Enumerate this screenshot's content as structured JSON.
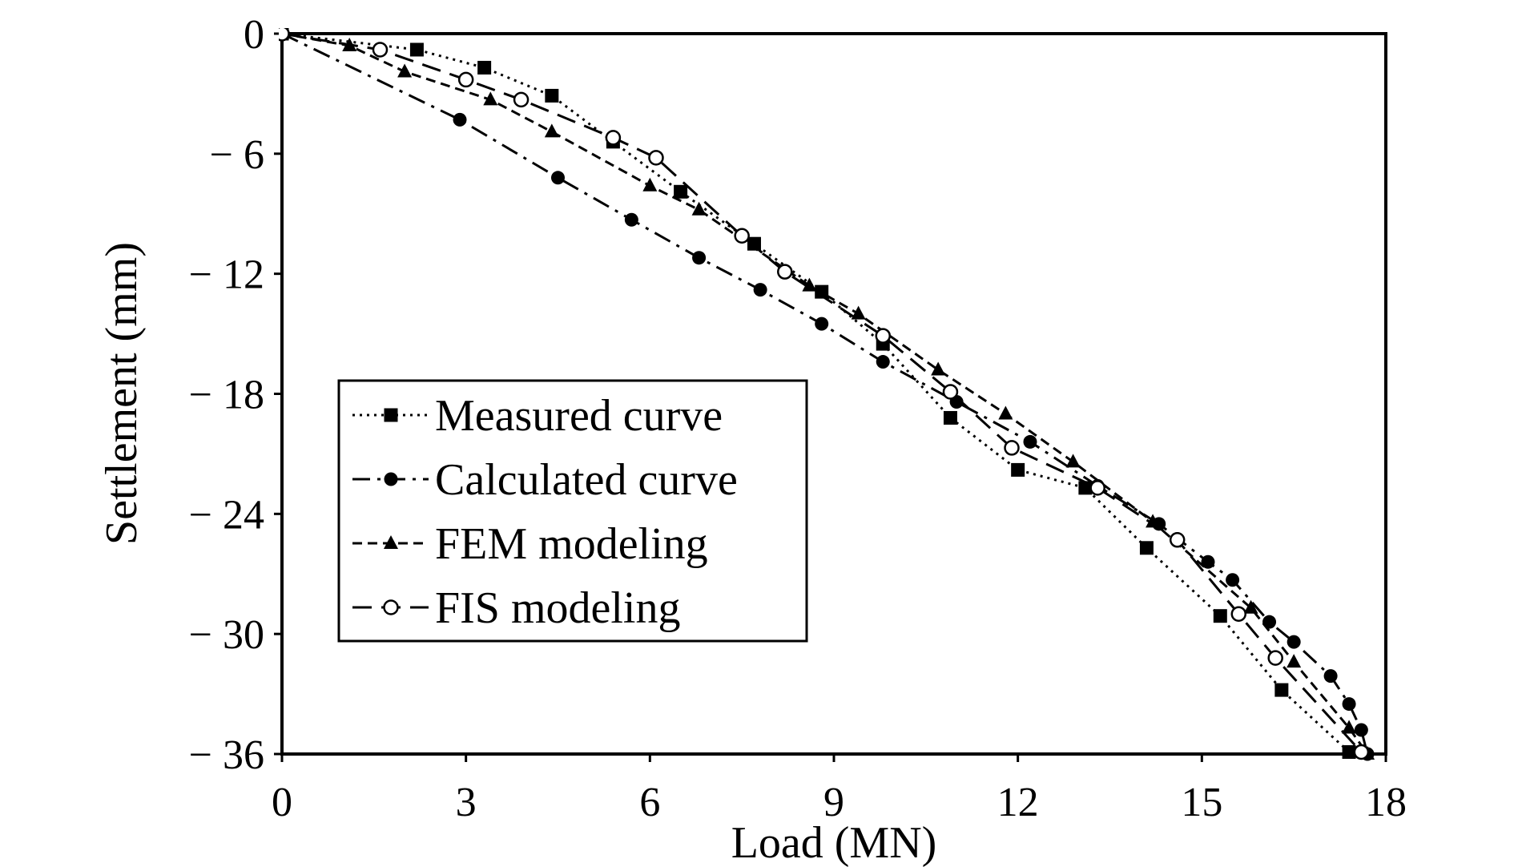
{
  "chart_data": {
    "type": "line",
    "title": "",
    "xlabel": "Load (MN)",
    "ylabel": "Settlement (mm)",
    "xlim": [
      0,
      18
    ],
    "ylim": [
      -36,
      0
    ],
    "xticks": [
      0,
      3,
      6,
      9,
      12,
      15,
      18
    ],
    "yticks": [
      0,
      -6,
      -12,
      -18,
      -24,
      -30,
      -36
    ],
    "xtick_labels": [
      "0",
      "3",
      "6",
      "9",
      "12",
      "15",
      "18"
    ],
    "ytick_labels": [
      "0",
      "− 6",
      "− 12",
      "− 18",
      "− 24",
      "− 30",
      "− 36"
    ],
    "grid": false,
    "legend_position": "lower-left",
    "series": [
      {
        "name": "Measured curve",
        "line_style": "dotted",
        "marker": "filled-square",
        "x": [
          0,
          2.2,
          3.3,
          4.4,
          5.4,
          6.5,
          7.7,
          8.8,
          9.8,
          10.9,
          12.0,
          13.1,
          14.1,
          15.3,
          16.3,
          17.4
        ],
        "y": [
          0,
          -0.8,
          -1.7,
          -3.1,
          -5.4,
          -7.9,
          -10.5,
          -12.9,
          -15.5,
          -19.2,
          -21.8,
          -22.7,
          -25.7,
          -29.1,
          -32.8,
          -35.9
        ]
      },
      {
        "name": "Calculated curve",
        "line_style": "dash-dot",
        "marker": "filled-circle",
        "x": [
          0,
          2.9,
          4.5,
          5.7,
          6.8,
          7.8,
          8.8,
          9.8,
          11.0,
          12.2,
          13.3,
          14.3,
          15.1,
          15.5,
          16.1,
          16.5,
          17.1,
          17.4,
          17.6,
          17.7
        ],
        "y": [
          0,
          -4.3,
          -7.2,
          -9.3,
          -11.2,
          -12.8,
          -14.5,
          -16.4,
          -18.4,
          -20.4,
          -22.6,
          -24.5,
          -26.4,
          -27.3,
          -29.4,
          -30.4,
          -32.1,
          -33.5,
          -34.8,
          -36.0
        ]
      },
      {
        "name": "FEM modeling",
        "line_style": "dashed",
        "marker": "filled-triangle",
        "x": [
          0,
          1.1,
          2.0,
          3.4,
          4.4,
          6.0,
          6.8,
          8.6,
          9.4,
          10.7,
          11.8,
          12.9,
          14.2,
          15.8,
          16.5,
          17.4,
          17.7
        ],
        "y": [
          0,
          -0.6,
          -1.9,
          -3.3,
          -4.9,
          -7.6,
          -8.8,
          -12.6,
          -14.0,
          -16.8,
          -19.0,
          -21.4,
          -24.4,
          -28.7,
          -31.4,
          -34.7,
          -36.0
        ]
      },
      {
        "name": "FIS modeling",
        "line_style": "long-dash",
        "marker": "open-circle",
        "x": [
          0,
          1.6,
          3.0,
          3.9,
          5.4,
          6.1,
          7.5,
          8.2,
          9.8,
          10.9,
          11.9,
          13.3,
          14.6,
          15.6,
          16.2,
          17.6
        ],
        "y": [
          0,
          -0.8,
          -2.3,
          -3.3,
          -5.2,
          -6.2,
          -10.1,
          -11.9,
          -15.1,
          -17.9,
          -20.7,
          -22.7,
          -25.3,
          -29.0,
          -31.2,
          -35.9
        ]
      }
    ]
  }
}
